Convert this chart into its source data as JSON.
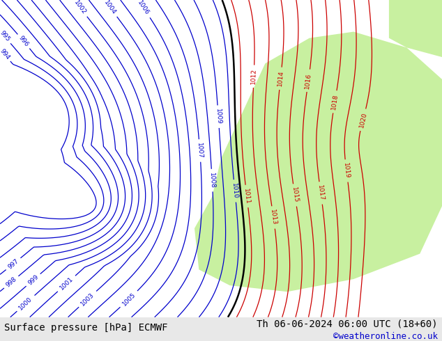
{
  "title_left": "Surface pressure [hPa] ECMWF",
  "title_right": "Th 06-06-2024 06:00 UTC (18+60)",
  "copyright": "©weatheronline.co.uk",
  "background_color": "#e8e8e8",
  "map_background": "#ffffff",
  "green_area_color": "#c8f0a0",
  "bottom_bar_color": "#d0d0d0",
  "bottom_bar_height": 0.07,
  "title_fontsize": 11,
  "copyright_fontsize": 9,
  "blue_contour_color": "#0000cc",
  "red_contour_color": "#cc0000",
  "black_contour_color": "#000000",
  "label_fontsize": 8
}
